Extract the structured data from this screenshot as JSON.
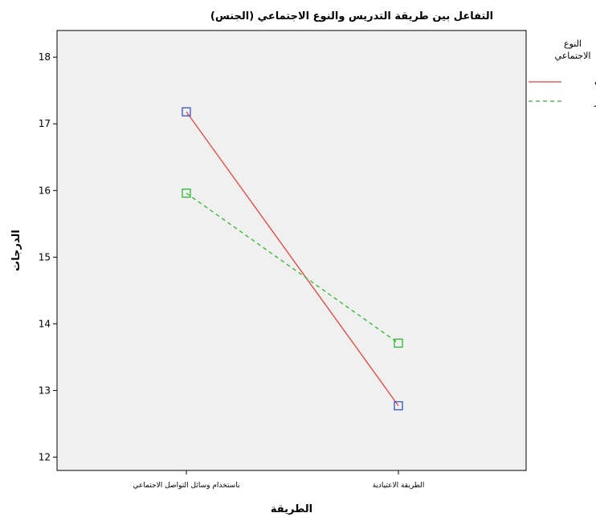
{
  "chart_data": {
    "type": "line",
    "title": "التفاعل بين طريقة التدريس والنوع الاجتماعي (الجنس)",
    "xlabel": "الطريقة",
    "ylabel": "الدرجات",
    "categories": [
      "باستخدام وسائل التواصل الاجتماعي",
      "الطريقة الاعتيادية"
    ],
    "ylim": [
      11.8,
      18.4
    ],
    "yticks": [
      12,
      13,
      14,
      15,
      16,
      17,
      18
    ],
    "grid": false,
    "legend": {
      "title_lines": [
        "النوع",
        "الاجتماعي"
      ],
      "placement": "right"
    },
    "series": [
      {
        "name": "الاناث",
        "values": [
          17.18,
          12.77
        ],
        "color": "#e8413c",
        "dash": "solid",
        "marker": "square",
        "marker_color": "#3355cc"
      },
      {
        "name": "ذكور",
        "values": [
          15.96,
          13.71
        ],
        "color": "#2db82d",
        "dash": "dashed",
        "marker": "square",
        "marker_color": "#2db82d"
      }
    ],
    "plot_background": "#f0f0f0"
  }
}
